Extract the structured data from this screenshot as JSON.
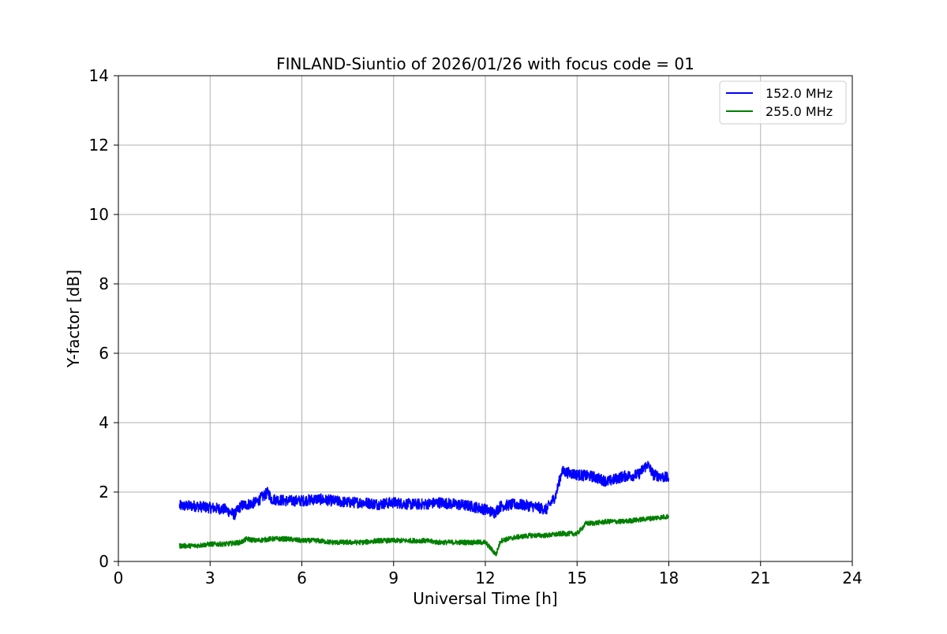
{
  "chart_data": {
    "type": "line",
    "title": "FINLAND-Siuntio of 2026/01/26 with focus code = 01",
    "xlabel": "Universal Time [h]",
    "ylabel": "Y-factor [dB]",
    "xlim": [
      0,
      24
    ],
    "ylim": [
      0,
      14
    ],
    "xticks": [
      0,
      3,
      6,
      9,
      12,
      15,
      18,
      21,
      24
    ],
    "yticks": [
      0,
      2,
      4,
      6,
      8,
      10,
      12,
      14
    ],
    "grid": true,
    "legend_position": "top-right",
    "series": [
      {
        "name": "152.0 MHz",
        "color": "#0000ff",
        "x": [
          2.0,
          2.5,
          3.0,
          3.5,
          3.8,
          4.0,
          4.5,
          4.9,
          5.0,
          5.5,
          6.0,
          6.5,
          7.0,
          7.5,
          8.0,
          8.5,
          9.0,
          9.5,
          10.0,
          10.5,
          11.0,
          11.5,
          12.0,
          12.3,
          12.5,
          13.0,
          13.5,
          14.0,
          14.3,
          14.5,
          15.0,
          15.5,
          16.0,
          16.5,
          17.0,
          17.3,
          17.5,
          18.0
        ],
        "y": [
          1.6,
          1.6,
          1.55,
          1.5,
          1.35,
          1.6,
          1.7,
          2.0,
          1.8,
          1.75,
          1.75,
          1.8,
          1.75,
          1.7,
          1.7,
          1.65,
          1.7,
          1.65,
          1.65,
          1.7,
          1.65,
          1.6,
          1.5,
          1.4,
          1.6,
          1.65,
          1.6,
          1.5,
          1.9,
          2.6,
          2.5,
          2.45,
          2.3,
          2.45,
          2.5,
          2.8,
          2.5,
          2.4
        ]
      },
      {
        "name": "255.0 MHz",
        "color": "#008000",
        "x": [
          2.0,
          2.5,
          3.0,
          3.5,
          4.0,
          4.2,
          4.5,
          5.0,
          5.5,
          6.0,
          6.5,
          7.0,
          7.5,
          8.0,
          8.5,
          9.0,
          9.5,
          10.0,
          10.5,
          11.0,
          11.5,
          12.0,
          12.35,
          12.5,
          13.0,
          13.5,
          14.0,
          14.5,
          15.0,
          15.3,
          15.5,
          16.0,
          16.5,
          17.0,
          17.5,
          18.0
        ],
        "y": [
          0.45,
          0.45,
          0.5,
          0.5,
          0.55,
          0.65,
          0.6,
          0.65,
          0.65,
          0.6,
          0.6,
          0.55,
          0.55,
          0.55,
          0.6,
          0.6,
          0.6,
          0.6,
          0.55,
          0.55,
          0.55,
          0.55,
          0.2,
          0.6,
          0.7,
          0.75,
          0.75,
          0.8,
          0.8,
          1.1,
          1.1,
          1.15,
          1.15,
          1.2,
          1.25,
          1.3
        ]
      }
    ]
  }
}
